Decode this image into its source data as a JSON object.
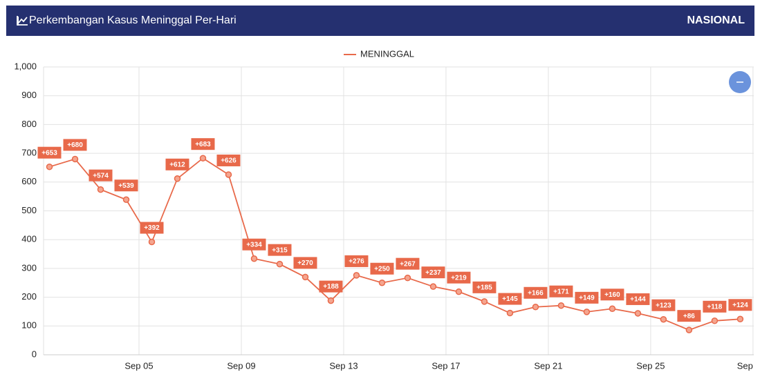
{
  "header": {
    "title": "Perkembangan Kasus Meninggal Per-Hari",
    "region": "NASIONAL"
  },
  "chart_data": {
    "type": "line",
    "x": [
      1.5,
      2.5,
      3.5,
      4.5,
      5.5,
      6.5,
      7.5,
      8.5,
      9.5,
      10.5,
      11.5,
      12.5,
      13.5,
      14.5,
      15.5,
      16.5,
      17.5,
      18.5,
      19.5,
      20.5,
      21.5,
      22.5,
      23.5,
      24.5,
      25.5,
      26.5,
      27.5,
      28.5
    ],
    "series": [
      {
        "name": "MENINGGAL",
        "color": "#e8694a",
        "values": [
          653,
          680,
          574,
          539,
          392,
          612,
          683,
          626,
          334,
          315,
          270,
          188,
          276,
          250,
          267,
          237,
          219,
          185,
          145,
          166,
          171,
          149,
          160,
          144,
          123,
          86,
          118,
          124
        ],
        "value_labels": [
          "+653",
          "+680",
          "+574",
          "+539",
          "+392",
          "+612",
          "+683",
          "+626",
          "+334",
          "+315",
          "+270",
          "+188",
          "+276",
          "+250",
          "+267",
          "+237",
          "+219",
          "+185",
          "+145",
          "+166",
          "+171",
          "+149",
          "+160",
          "+144",
          "+123",
          "+86",
          "+118",
          "+124"
        ]
      }
    ],
    "xlim": [
      1.27,
      29.03
    ],
    "xticks": [
      {
        "value": 5,
        "label": "Sep 05"
      },
      {
        "value": 9,
        "label": "Sep 09"
      },
      {
        "value": 13,
        "label": "Sep 13"
      },
      {
        "value": 17,
        "label": "Sep 17"
      },
      {
        "value": 21,
        "label": "Sep 21"
      },
      {
        "value": 25,
        "label": "Sep 25"
      },
      {
        "value": 29,
        "label": "Sep"
      }
    ],
    "ylim": [
      0,
      1000
    ],
    "yticks": [
      0,
      100,
      200,
      300,
      400,
      500,
      600,
      700,
      800,
      900,
      {
        "value": 1000,
        "label": "1,000"
      }
    ],
    "grid": true,
    "legend": "top"
  }
}
